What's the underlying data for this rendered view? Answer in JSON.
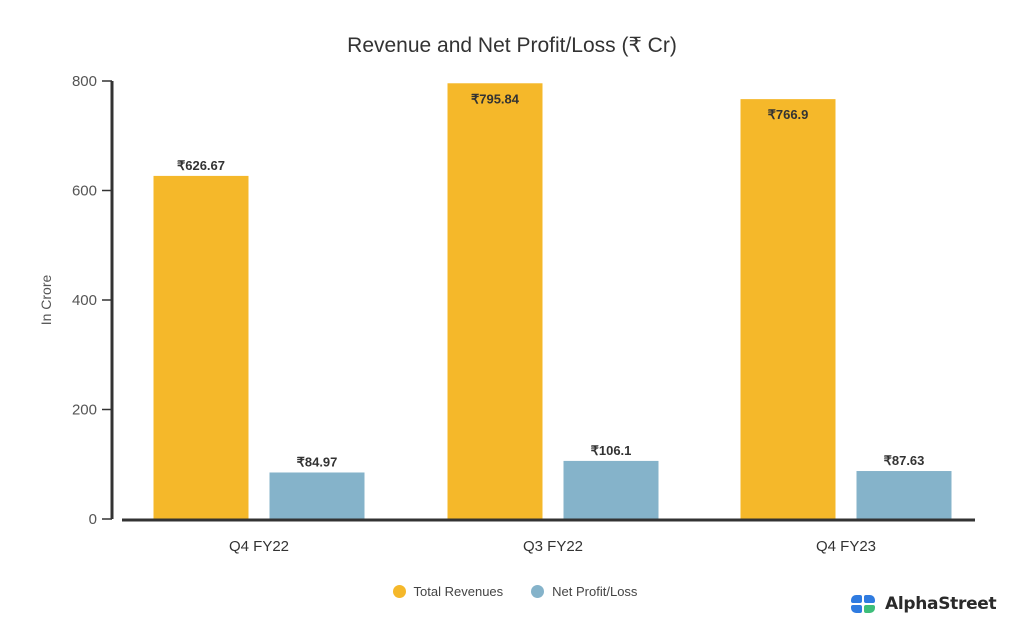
{
  "chart_data": {
    "type": "bar",
    "title": "Revenue and Net Profit/Loss (₹ Cr)",
    "xlabel": "",
    "ylabel": "In Crore",
    "ylim": [
      0,
      800
    ],
    "yticks": [
      0,
      200,
      400,
      600,
      800
    ],
    "ytick_labels": [
      "0",
      "200",
      "400",
      "600",
      "800"
    ],
    "grid": false,
    "legend_position": "bottom-center",
    "categories": [
      "Q4 FY22",
      "Q3 FY22",
      "Q4 FY23"
    ],
    "series": [
      {
        "name": "Total Revenues",
        "color": "#F5B82A",
        "values": [
          626.67,
          795.84,
          766.9
        ],
        "labels": [
          "₹626.67",
          "₹795.84",
          "₹766.9"
        ],
        "label_position": [
          "outside",
          "inside",
          "inside"
        ]
      },
      {
        "name": "Net Profit/Loss",
        "color": "#85B3CA",
        "values": [
          84.97,
          106.1,
          87.63
        ],
        "labels": [
          "₹84.97",
          "₹106.1",
          "₹87.63"
        ],
        "label_position": [
          "outside",
          "outside",
          "outside"
        ]
      }
    ]
  },
  "legend": {
    "items": [
      {
        "label": "Total Revenues",
        "color": "#F5B82A"
      },
      {
        "label": "Net Profit/Loss",
        "color": "#85B3CA"
      }
    ]
  },
  "branding": {
    "logo_text": "AlphaStreet",
    "logo_colors": [
      "#2F7BE0",
      "#2F7BE0",
      "#2F7BE0",
      "#3DBE7A"
    ]
  }
}
